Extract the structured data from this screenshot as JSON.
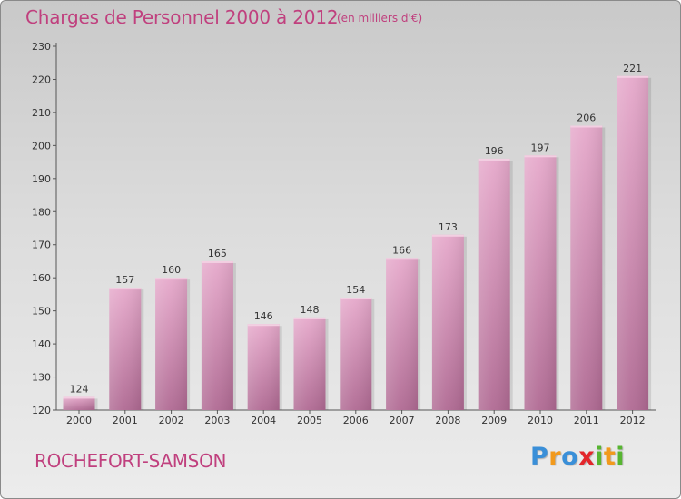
{
  "header": {
    "title": "Charges de Personnel 2000 à 2012",
    "subtitle": "(en milliers d'€)"
  },
  "footer": {
    "commune": "ROCHEFORT-SAMSON",
    "logo": {
      "letters": [
        "P",
        "r",
        "o",
        "x",
        "i",
        "t",
        "i"
      ],
      "colors": [
        "#3a8fd8",
        "#f29a1c",
        "#3a8fd8",
        "#e3262b",
        "#57b531",
        "#f29a1c",
        "#57b531"
      ]
    }
  },
  "colors": {
    "bar_light": "#e6a9cb",
    "bar_dark": "#b06a93",
    "text_accent": "#c0407e"
  },
  "chart_data": {
    "type": "bar",
    "categories": [
      "2000",
      "2001",
      "2002",
      "2003",
      "2004",
      "2005",
      "2006",
      "2007",
      "2008",
      "2009",
      "2010",
      "2011",
      "2012"
    ],
    "values": [
      124,
      157,
      160,
      165,
      146,
      148,
      154,
      166,
      173,
      196,
      197,
      206,
      221
    ],
    "yticks": [
      120,
      130,
      140,
      150,
      160,
      170,
      180,
      190,
      200,
      210,
      220,
      230
    ],
    "ylim": [
      120,
      230
    ],
    "grid": false,
    "legend": "none"
  }
}
